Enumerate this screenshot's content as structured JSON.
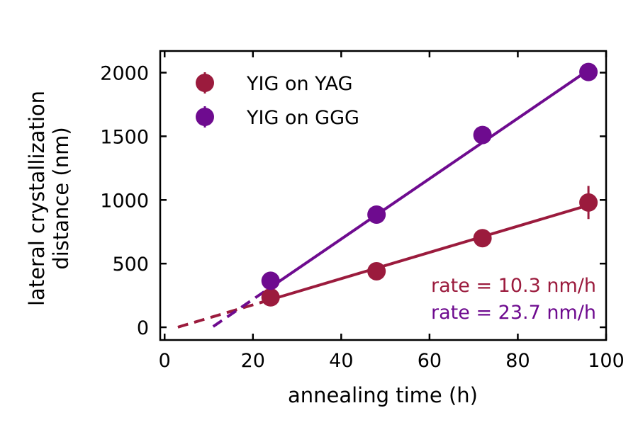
{
  "chart_data": {
    "type": "scatter",
    "xlabel": "annealing time (h)",
    "ylabel_lines": [
      "lateral crystallization",
      "distance (nm)"
    ],
    "xlim": [
      -1,
      100
    ],
    "ylim": [
      -100,
      2170
    ],
    "xticks": [
      0,
      20,
      40,
      60,
      80,
      100
    ],
    "xtick_labels": [
      "0",
      "20",
      "40",
      "60",
      "80",
      "100"
    ],
    "yticks": [
      0,
      500,
      1000,
      1500,
      2000
    ],
    "ytick_labels": [
      "0",
      "500",
      "1000",
      "1500",
      "2000"
    ],
    "legend_position": "top-left",
    "series": [
      {
        "name": "YIG on YAG",
        "color": "#9b1b3d",
        "x": [
          24,
          48,
          72,
          96
        ],
        "y": [
          235,
          440,
          700,
          980
        ],
        "yerr": [
          30,
          25,
          60,
          130
        ],
        "fit": {
          "rate": 10.3,
          "intercept": -30,
          "solid_range": [
            24,
            96
          ],
          "dashed_range": [
            3,
            24
          ]
        },
        "annotation": "rate = 10.3 nm/h"
      },
      {
        "name": "YIG on GGG",
        "color": "#6e0b8f",
        "x": [
          24,
          48,
          72,
          96
        ],
        "y": [
          365,
          885,
          1510,
          2005
        ],
        "yerr": [
          15,
          25,
          25,
          20
        ],
        "fit": {
          "rate": 23.7,
          "intercept": -255,
          "solid_range": [
            24,
            96
          ],
          "dashed_range": [
            11,
            24
          ]
        },
        "annotation": "rate = 23.7 nm/h"
      }
    ]
  }
}
